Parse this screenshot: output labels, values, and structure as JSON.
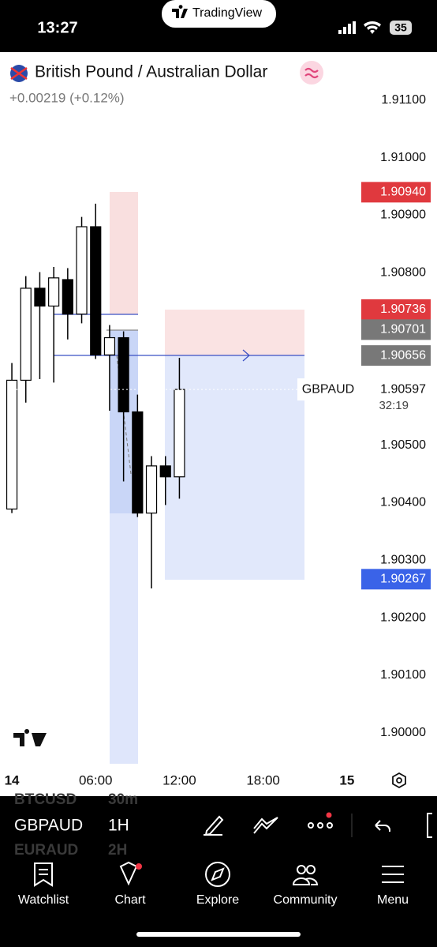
{
  "status_bar": {
    "time": "13:27",
    "app": "TradingView",
    "battery": "35"
  },
  "header": {
    "title": "British Pound / Australian Dollar",
    "change": "+0.00219 (+0.12%)"
  },
  "chart_data": {
    "type": "candlestick",
    "x": [
      0,
      1,
      2,
      3,
      4,
      5,
      6,
      7,
      8,
      9,
      10,
      11,
      12
    ],
    "open": [
      1.90389,
      1.90613,
      1.90773,
      1.90742,
      1.90788,
      1.90728,
      1.9088,
      1.90657,
      1.90687,
      1.90558,
      1.90382,
      1.90464,
      1.90445
    ],
    "high": [
      1.90643,
      1.90794,
      1.90801,
      1.9081,
      1.90808,
      1.90897,
      1.9092,
      1.90709,
      1.90698,
      1.90588,
      1.90481,
      1.90481,
      1.90652
    ],
    "low": [
      1.90382,
      1.90574,
      1.90615,
      1.90609,
      1.90684,
      1.90712,
      1.9065,
      1.9056,
      1.90437,
      1.90375,
      1.90251,
      1.90396,
      1.90407
    ],
    "close": [
      1.90613,
      1.90773,
      1.90742,
      1.90791,
      1.90728,
      1.9088,
      1.90657,
      1.90687,
      1.90558,
      1.90382,
      1.90464,
      1.90445,
      1.90597
    ],
    "up_color": "#ffffff",
    "down_color": "#000000",
    "xlim": [
      -0.85,
      25.14
    ],
    "xticks": [
      {
        "value": 0,
        "label": "14"
      },
      {
        "value": 6,
        "label": "06:00"
      },
      {
        "value": 12,
        "label": "12:00"
      },
      {
        "value": 18,
        "label": "18:00"
      },
      {
        "value": 24,
        "label": "15"
      }
    ],
    "ylim": [
      1.89946,
      1.91185
    ],
    "yticks": [
      {
        "value": 1.911,
        "label": "1.91100"
      },
      {
        "value": 1.91,
        "label": "1.91000"
      },
      {
        "value": 1.909,
        "label": "1.90900"
      },
      {
        "value": 1.908,
        "label": "1.90800"
      },
      {
        "value": 1.905,
        "label": "1.90500"
      },
      {
        "value": 1.904,
        "label": "1.90400"
      },
      {
        "value": 1.903,
        "label": "1.90300"
      },
      {
        "value": 1.902,
        "label": "1.90200"
      },
      {
        "value": 1.901,
        "label": "1.90100"
      },
      {
        "value": 1.9,
        "label": "1.90000"
      }
    ],
    "price_labels": [
      {
        "value": 1.9094,
        "label": "1.90940",
        "color": "#e0393e"
      },
      {
        "value": 1.90736,
        "label": "1.90736",
        "color": "#e0393e"
      },
      {
        "value": 1.90701,
        "label": "1.90701",
        "color": "#787878"
      },
      {
        "value": 1.90656,
        "label": "1.90656",
        "color": "#787878"
      },
      {
        "value": 1.90267,
        "label": "1.90267",
        "color": "#3a63e8"
      }
    ],
    "current": {
      "symbol": "GBPAUD",
      "value": 1.90597,
      "label": "1.90597",
      "countdown": "32:19"
    }
  },
  "toolbar": {
    "symbol": "GBPAUD",
    "interval": "1H",
    "prev_symbol": "BTCUSD",
    "prev_interval": "30m",
    "next_symbol": "EURAUD",
    "next_interval": "2H"
  },
  "nav": [
    "Watchlist",
    "Chart",
    "Explore",
    "Community",
    "Menu"
  ]
}
